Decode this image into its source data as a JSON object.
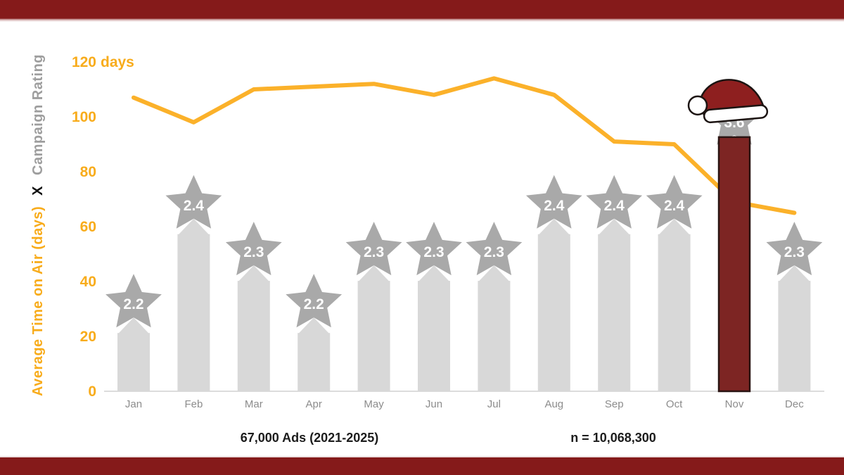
{
  "page": {
    "background": "#ffffff",
    "banner_color": "#851a1a"
  },
  "chart_data": {
    "type": "bar+line",
    "categories": [
      "Jan",
      "Feb",
      "Mar",
      "Apr",
      "May",
      "Jun",
      "Jul",
      "Aug",
      "Sep",
      "Oct",
      "Nov",
      "Dec"
    ],
    "series": [
      {
        "name": "Average Time on Air (days)",
        "type": "line",
        "color": "#FBB12A",
        "values": [
          107,
          98,
          110,
          111,
          112,
          108,
          114,
          108,
          91,
          90,
          69,
          65
        ]
      },
      {
        "name": "Campaign Rating",
        "type": "bar",
        "color": "#D8D8D8",
        "star_color": "#A9A9A9",
        "value_text_color": "#FFFFFF",
        "values": [
          2.2,
          2.4,
          2.3,
          2.2,
          2.3,
          2.3,
          2.3,
          2.4,
          2.4,
          2.4,
          3.6,
          2.3
        ],
        "bar_top_days": [
          32,
          68,
          51,
          32,
          51,
          51,
          51,
          68,
          68,
          68,
          98.5,
          51
        ],
        "highlight": {
          "index": 10,
          "month": "Nov",
          "color": "#7D2523",
          "outline": "#2A1412",
          "decoration": "santa-hat-icon",
          "hat_red": "#8E1F1F",
          "hat_white": "#FFFFFF",
          "hat_outline": "#1C1412"
        }
      }
    ],
    "ylabel_parts": {
      "days": "Average Time on Air (days)",
      "separator": "X",
      "rating": "Campaign  Rating"
    },
    "ylabel_colors": {
      "days": "#F8AC1C",
      "separator": "#111111",
      "rating": "#9E9E9E"
    },
    "y_ticks": [
      120,
      100,
      80,
      60,
      40,
      20,
      0
    ],
    "y_unit_suffix": " days",
    "ylim": [
      0,
      120
    ],
    "axis_text_color": "#F8AC1C",
    "x_tick_color": "#8C8C8C",
    "baseline_color": "#DCDCDC",
    "grid": false,
    "legend": false,
    "annotations": {
      "left": "67,000 Ads (2021-2025)",
      "right": "n = 10,068,300",
      "color": "#1C1C1C"
    }
  }
}
